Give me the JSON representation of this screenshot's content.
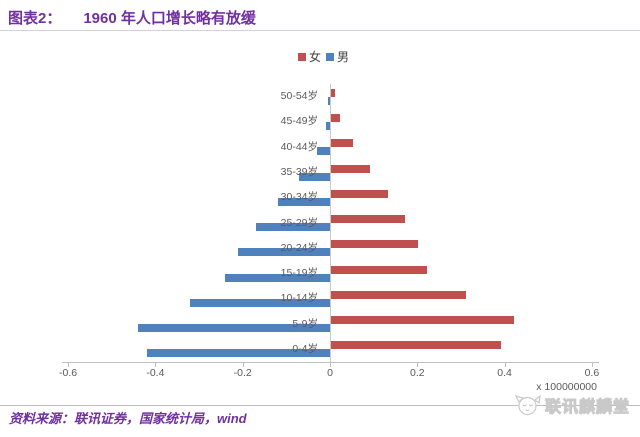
{
  "header": {
    "prefix": "图表2：",
    "title": "1960 年人口增长略有放缓"
  },
  "legend": [
    {
      "label": "女",
      "color": "#C0504D"
    },
    {
      "label": "男",
      "color": "#4F81BD"
    }
  ],
  "chart_data": {
    "type": "bar",
    "orientation": "horizontal-pyramid",
    "title": "1960 年人口增长略有放缓",
    "categories": [
      "50-54岁",
      "45-49岁",
      "40-44岁",
      "35-39岁",
      "30-34岁",
      "25-29岁",
      "20-24岁",
      "15-19岁",
      "10-14岁",
      "5-9岁",
      "0-4岁"
    ],
    "series": [
      {
        "name": "女",
        "color": "#C0504D",
        "side": "right",
        "values": [
          0.008,
          0.02,
          0.05,
          0.09,
          0.13,
          0.17,
          0.2,
          0.22,
          0.31,
          0.42,
          0.39
        ]
      },
      {
        "name": "男",
        "color": "#4F81BD",
        "side": "left",
        "values": [
          0.005,
          0.01,
          0.03,
          0.07,
          0.12,
          0.17,
          0.21,
          0.24,
          0.32,
          0.44,
          0.42
        ]
      }
    ],
    "x_ticks": [
      -0.6,
      -0.4,
      -0.2,
      0,
      0.2,
      0.4,
      0.6
    ],
    "xlim": [
      -0.6,
      0.6
    ],
    "x_unit": "x 100000000",
    "grid": false,
    "legend_position": "top-center",
    "note": "male bars drawn to the left of zero, female bars to the right"
  },
  "footer": {
    "source": "资料来源：联讯证券，国家统计局，wind",
    "watermark": "联讯麒麟堂"
  }
}
